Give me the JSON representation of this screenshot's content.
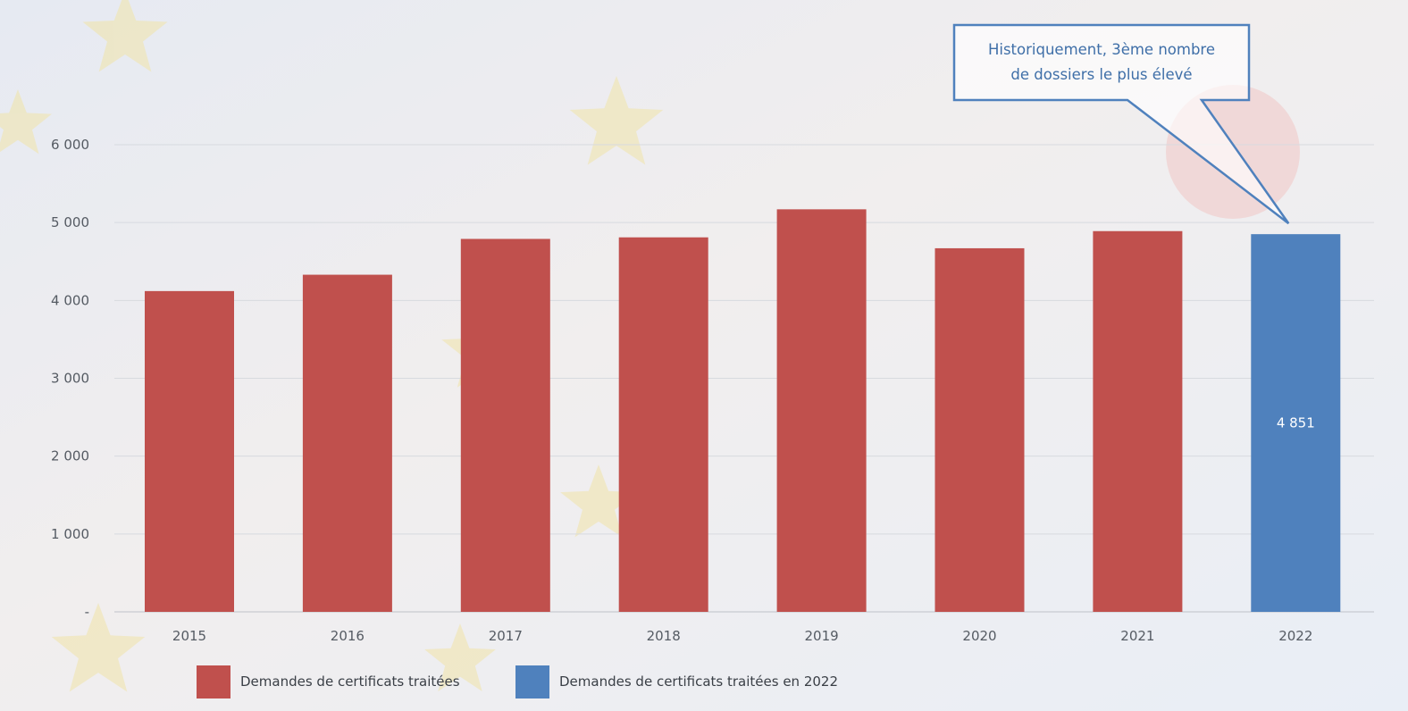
{
  "chart_data": {
    "type": "bar",
    "categories": [
      "2015",
      "2016",
      "2017",
      "2018",
      "2019",
      "2020",
      "2021",
      "2022"
    ],
    "series": [
      {
        "name": "Demandes de certificats traitées",
        "color": "#c0504d",
        "values": [
          4120,
          4330,
          4790,
          4810,
          5170,
          4670,
          4890,
          null
        ]
      },
      {
        "name": "Demandes de certificats traitées en 2022",
        "color": "#4f81bd",
        "values": [
          null,
          null,
          null,
          null,
          null,
          null,
          null,
          4851
        ]
      }
    ],
    "ylim": [
      0,
      6000
    ],
    "yticks": [
      {
        "value": 0,
        "label": "-"
      },
      {
        "value": 1000,
        "label": "1 000"
      },
      {
        "value": 2000,
        "label": "2 000"
      },
      {
        "value": 3000,
        "label": "3 000"
      },
      {
        "value": 4000,
        "label": "4 000"
      },
      {
        "value": 5000,
        "label": "5 000"
      },
      {
        "value": 6000,
        "label": "6 000"
      }
    ],
    "data_labels": [
      {
        "category": "2022",
        "text": "4 851"
      }
    ],
    "annotation": {
      "lines": [
        "Historiquement, 3ème nombre",
        "de dossiers le plus élevé"
      ],
      "target_category": "2022"
    },
    "grid": true,
    "legend_position": "bottom-left"
  }
}
